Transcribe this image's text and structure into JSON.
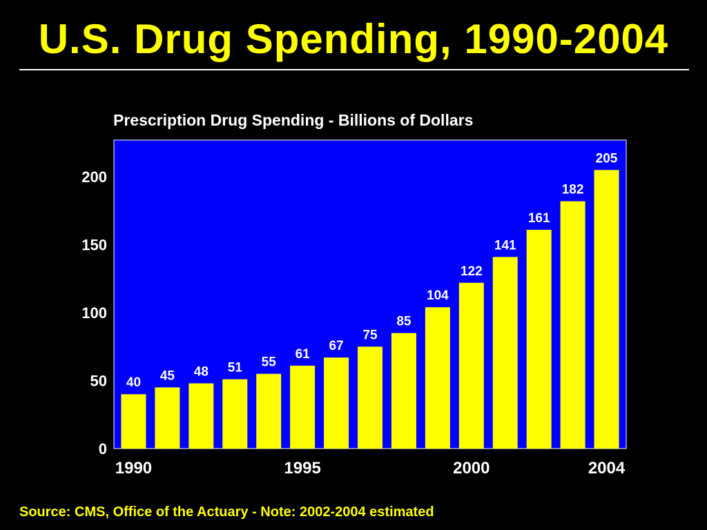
{
  "slide": {
    "title": "U.S. Drug Spending, 1990-2004",
    "source_note": "Source: CMS, Office of the Actuary - Note: 2002-2004 estimated"
  },
  "colors": {
    "background": "#000000",
    "title_text": "#ffff00",
    "plot_background": "#0000ff",
    "bar_fill": "#ffff00",
    "label_text": "#ffffff"
  },
  "chart_data": {
    "type": "bar",
    "title": "Prescription Drug Spending - Billions of Dollars",
    "xlabel": "",
    "ylabel": "",
    "categories": [
      "1990",
      "1991",
      "1992",
      "1993",
      "1994",
      "1995",
      "1996",
      "1997",
      "1998",
      "1999",
      "2000",
      "2001",
      "2002",
      "2003",
      "2004"
    ],
    "values": [
      40,
      45,
      48,
      51,
      55,
      61,
      67,
      75,
      85,
      104,
      122,
      141,
      161,
      182,
      205
    ],
    "data_labels": [
      "40",
      "45",
      "48",
      "51",
      "55",
      "61",
      "67",
      "75",
      "85",
      "104",
      "122",
      "141",
      "161",
      "182",
      "205"
    ],
    "x_tick_labels": [
      "1990",
      "1995",
      "2000",
      "2004"
    ],
    "y_ticks": [
      0,
      50,
      100,
      150,
      200
    ],
    "ylim": [
      0,
      227
    ],
    "grid": false,
    "legend": "none"
  }
}
